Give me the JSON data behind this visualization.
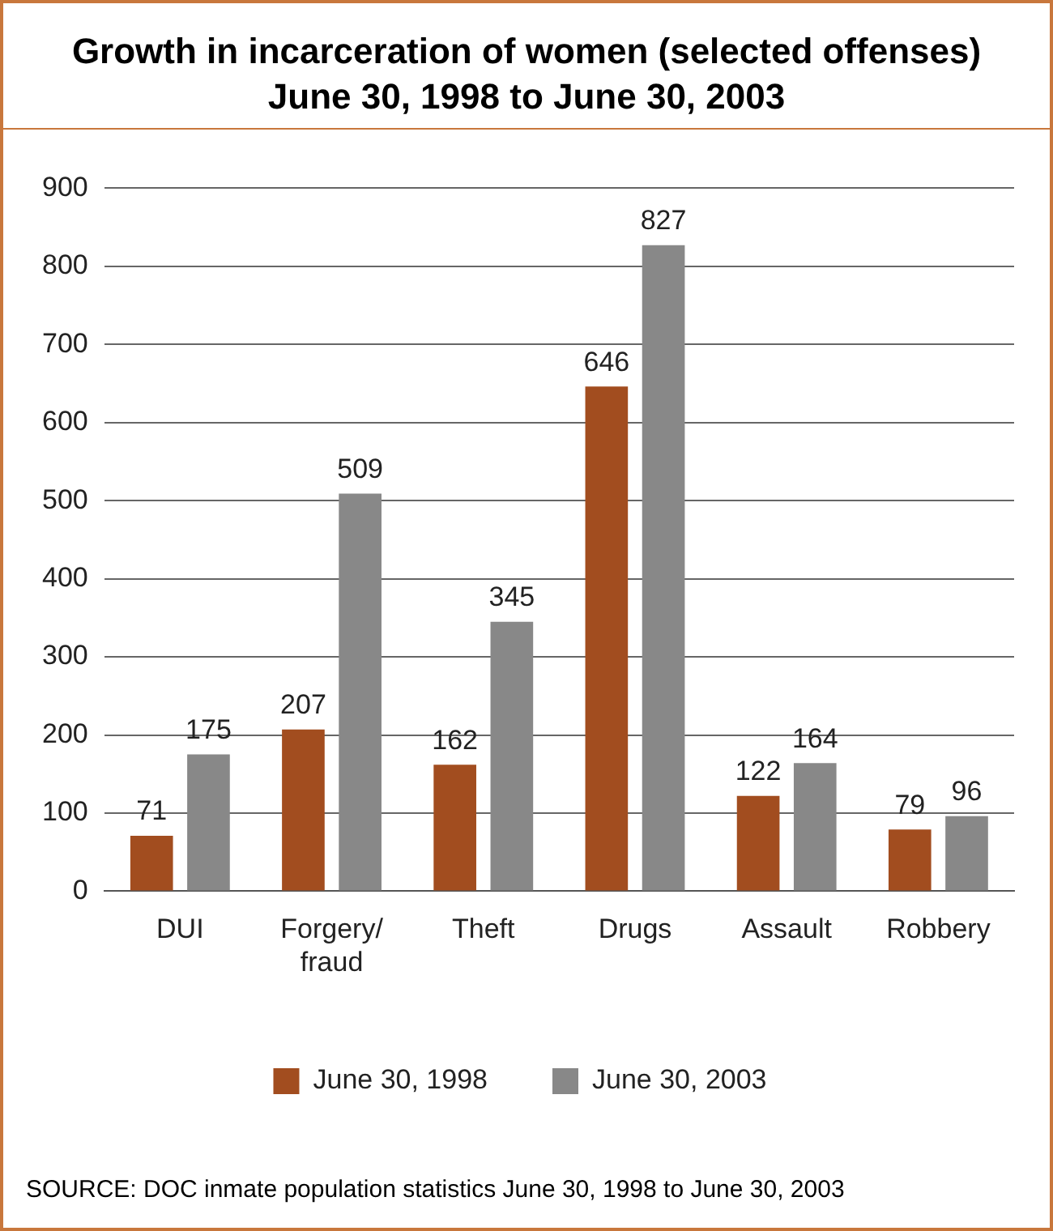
{
  "chart_data": {
    "type": "bar",
    "title": "Growth in incarceration of women (selected offenses)\nJune 30, 1998 to June 30, 2003",
    "categories": [
      "DUI",
      "Forgery/\nfraud",
      "Theft",
      "Drugs",
      "Assault",
      "Robbery"
    ],
    "series": [
      {
        "name": "June 30, 1998",
        "color": "#a24d1f",
        "values": [
          71,
          207,
          162,
          646,
          122,
          79
        ]
      },
      {
        "name": "June 30, 2003",
        "color": "#888888",
        "values": [
          175,
          509,
          345,
          827,
          164,
          96
        ]
      }
    ],
    "ylim": [
      0,
      900
    ],
    "yticks": [
      0,
      100,
      200,
      300,
      400,
      500,
      600,
      700,
      800,
      900
    ],
    "grid": "y",
    "legend": "bottom",
    "data_labels": true,
    "annotations": [
      "SOURCE: DOC inmate population statistics June 30, 1998 to June 30, 2003"
    ]
  }
}
